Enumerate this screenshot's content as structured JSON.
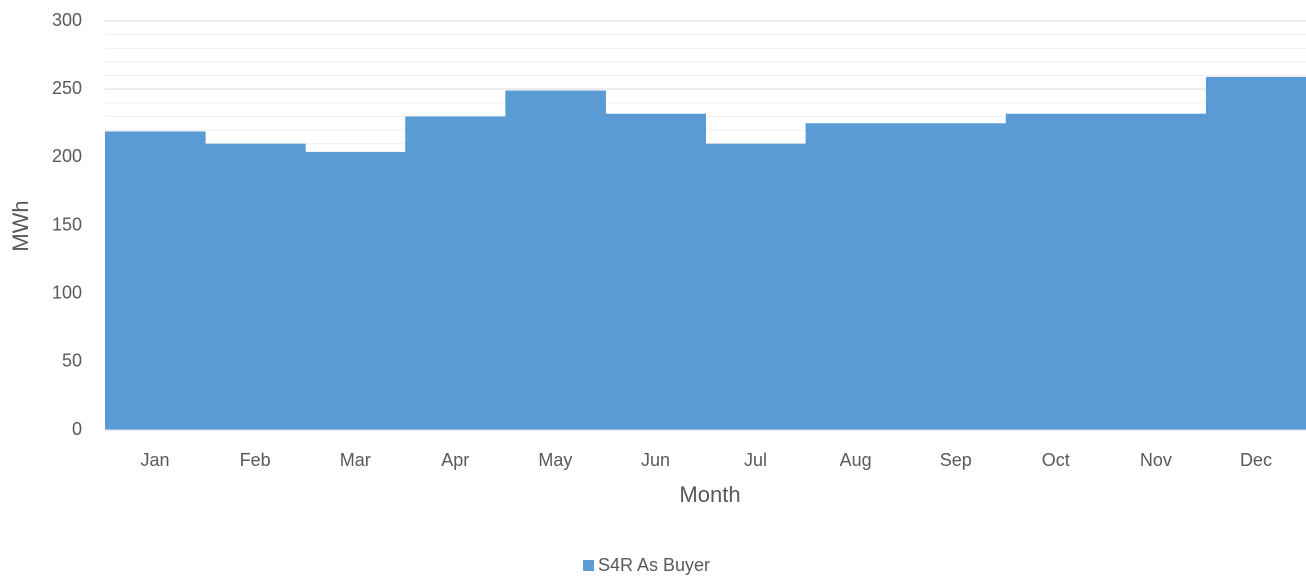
{
  "chart_data": {
    "type": "bar",
    "xlabel": "Month",
    "ylabel": "MWh",
    "categories": [
      "Jan",
      "Feb",
      "Mar",
      "Apr",
      "May",
      "Jun",
      "Jul",
      "Aug",
      "Sep",
      "Oct",
      "Nov",
      "Dec"
    ],
    "series": [
      {
        "name": "S4R As Buyer",
        "color": "#5b9bd5",
        "values": [
          219,
          210,
          204,
          230,
          249,
          232,
          210,
          225,
          225,
          232,
          232,
          259
        ]
      }
    ],
    "ylim": [
      0,
      300
    ],
    "yticks": [
      0,
      50,
      100,
      150,
      200,
      250,
      300
    ],
    "yminorticks": [
      10,
      20,
      30,
      40,
      60,
      70,
      80,
      90,
      110,
      120,
      130,
      140,
      160,
      170,
      180,
      190,
      210,
      220,
      230,
      240,
      260,
      270,
      280,
      290
    ],
    "grid": true,
    "legend": "bottom"
  }
}
